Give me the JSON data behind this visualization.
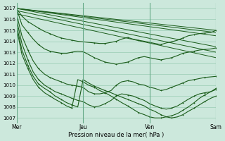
{
  "bg_color": "#cce8dc",
  "grid_color": "#99ccb3",
  "line_color": "#1a5c1a",
  "marker": "+",
  "xlabel": "Pression niveau de la mer( hPa )",
  "xtick_labels": [
    "Mer",
    "Jeu",
    "Ven",
    "Sam"
  ],
  "ylim": [
    1006.5,
    1017.5
  ],
  "yticks": [
    1007,
    1008,
    1009,
    1010,
    1011,
    1012,
    1013,
    1014,
    1015,
    1016,
    1017
  ],
  "xlim_days": [
    0,
    3
  ],
  "straight_lines": [
    {
      "x": [
        0,
        3
      ],
      "y": [
        1017.0,
        1015.0
      ]
    },
    {
      "x": [
        0,
        3
      ],
      "y": [
        1017.0,
        1014.8
      ]
    },
    {
      "x": [
        0,
        3
      ],
      "y": [
        1017.0,
        1014.5
      ]
    },
    {
      "x": [
        0,
        3
      ],
      "y": [
        1017.0,
        1013.5
      ]
    },
    {
      "x": [
        0,
        3
      ],
      "y": [
        1016.8,
        1013.0
      ]
    },
    {
      "x": [
        0,
        3
      ],
      "y": [
        1016.5,
        1012.5
      ]
    }
  ],
  "wavy_lines": [
    {
      "x": [
        0,
        0.08,
        0.17,
        0.25,
        0.33,
        0.42,
        0.5,
        0.58,
        0.67,
        0.75,
        0.83,
        0.92,
        1.0,
        1.08,
        1.17,
        1.25,
        1.33,
        1.42,
        1.5,
        1.58,
        1.67,
        1.75,
        1.83,
        1.92,
        2.0,
        2.08,
        2.17,
        2.25,
        2.33,
        2.42,
        2.5,
        2.58,
        2.67,
        2.75,
        2.83,
        2.92,
        3.0
      ],
      "y": [
        1017.0,
        1016.3,
        1015.8,
        1015.5,
        1015.2,
        1014.9,
        1014.7,
        1014.5,
        1014.3,
        1014.2,
        1014.1,
        1014.0,
        1013.95,
        1013.9,
        1013.85,
        1013.8,
        1013.8,
        1013.9,
        1014.0,
        1014.2,
        1014.35,
        1014.2,
        1014.1,
        1014.0,
        1013.9,
        1013.8,
        1013.7,
        1013.85,
        1013.95,
        1014.1,
        1014.3,
        1014.5,
        1014.6,
        1014.7,
        1014.75,
        1014.8,
        1015.0
      ]
    },
    {
      "x": [
        0,
        0.08,
        0.17,
        0.25,
        0.33,
        0.42,
        0.5,
        0.58,
        0.67,
        0.75,
        0.83,
        0.92,
        1.0,
        1.08,
        1.17,
        1.25,
        1.33,
        1.42,
        1.5,
        1.58,
        1.67,
        1.75,
        1.83,
        1.92,
        2.0,
        2.08,
        2.17,
        2.25,
        2.33,
        2.42,
        2.5,
        2.58,
        2.67,
        2.75,
        2.83,
        2.92,
        3.0
      ],
      "y": [
        1017.0,
        1015.5,
        1014.8,
        1014.2,
        1013.7,
        1013.3,
        1013.1,
        1013.0,
        1012.9,
        1012.9,
        1013.0,
        1013.1,
        1013.05,
        1012.8,
        1012.5,
        1012.3,
        1012.1,
        1012.0,
        1011.9,
        1012.0,
        1012.1,
        1012.3,
        1012.5,
        1012.6,
        1012.5,
        1012.4,
        1012.3,
        1012.4,
        1012.5,
        1012.7,
        1012.9,
        1013.0,
        1013.1,
        1013.2,
        1013.25,
        1013.3,
        1013.4
      ]
    },
    {
      "x": [
        0,
        0.08,
        0.17,
        0.25,
        0.33,
        0.42,
        0.5,
        0.58,
        0.67,
        0.75,
        0.83,
        0.92,
        1.0,
        1.08,
        1.17,
        1.25,
        1.33,
        1.42,
        1.5,
        1.58,
        1.67,
        1.75,
        1.83,
        1.92,
        2.0,
        2.08,
        2.17,
        2.25,
        2.33,
        2.42,
        2.5,
        2.58,
        2.67,
        2.75,
        2.83,
        2.92,
        3.0
      ],
      "y": [
        1016.5,
        1014.5,
        1013.2,
        1012.2,
        1011.5,
        1011.0,
        1010.7,
        1010.5,
        1010.3,
        1010.1,
        1010.0,
        1009.9,
        1009.8,
        1009.4,
        1009.2,
        1009.2,
        1009.3,
        1009.5,
        1010.0,
        1010.3,
        1010.4,
        1010.3,
        1010.1,
        1010.0,
        1009.8,
        1009.7,
        1009.5,
        1009.6,
        1009.8,
        1010.0,
        1010.2,
        1010.4,
        1010.5,
        1010.6,
        1010.7,
        1010.75,
        1010.8
      ]
    },
    {
      "x": [
        0,
        0.08,
        0.17,
        0.25,
        0.33,
        0.42,
        0.5,
        0.58,
        0.67,
        0.75,
        0.83,
        0.92,
        1.0,
        1.08,
        1.17,
        1.25,
        1.33,
        1.42,
        1.5,
        1.58,
        1.67,
        1.75,
        1.83,
        1.92,
        2.0,
        2.08,
        2.17,
        2.25,
        2.33,
        2.42,
        2.5,
        2.58,
        2.67,
        2.75,
        2.83,
        2.92,
        3.0
      ],
      "y": [
        1016.0,
        1013.8,
        1012.3,
        1011.2,
        1010.5,
        1010.0,
        1009.7,
        1009.4,
        1009.2,
        1009.0,
        1008.8,
        1008.6,
        1008.5,
        1008.2,
        1008.0,
        1008.1,
        1008.3,
        1008.6,
        1009.0,
        1009.2,
        1009.1,
        1009.0,
        1008.8,
        1008.6,
        1008.3,
        1008.1,
        1007.9,
        1007.8,
        1007.9,
        1008.1,
        1008.4,
        1008.7,
        1009.0,
        1009.2,
        1009.3,
        1009.4,
        1009.6
      ]
    },
    {
      "x": [
        0,
        0.08,
        0.17,
        0.25,
        0.33,
        0.42,
        0.5,
        0.58,
        0.67,
        0.75,
        0.83,
        0.92,
        1.0,
        1.08,
        1.17,
        1.25,
        1.33,
        1.42,
        1.5,
        1.58,
        1.67,
        1.75,
        1.83,
        1.92,
        2.0,
        2.08,
        2.17,
        2.25,
        2.33,
        2.42,
        2.5,
        2.58,
        2.67,
        2.75,
        2.83,
        2.92,
        3.0
      ],
      "y": [
        1015.5,
        1013.2,
        1011.8,
        1010.8,
        1010.1,
        1009.7,
        1009.4,
        1009.0,
        1008.7,
        1008.4,
        1008.2,
        1008.0,
        1010.5,
        1010.2,
        1009.9,
        1009.7,
        1009.5,
        1009.3,
        1009.1,
        1008.9,
        1008.7,
        1008.5,
        1008.3,
        1008.1,
        1007.8,
        1007.6,
        1007.3,
        1007.1,
        1007.0,
        1007.1,
        1007.3,
        1007.6,
        1007.9,
        1008.2,
        1008.5,
        1008.8,
        1009.0
      ]
    },
    {
      "x": [
        0,
        0.08,
        0.17,
        0.25,
        0.33,
        0.42,
        0.5,
        0.58,
        0.67,
        0.75,
        0.83,
        0.92,
        1.0,
        1.08,
        1.17,
        1.25,
        1.33,
        1.42,
        1.5,
        1.58,
        1.67,
        1.75,
        1.83,
        1.92,
        2.0,
        2.08,
        2.17,
        2.25,
        2.33,
        2.42,
        2.5,
        2.58,
        2.67,
        2.75,
        2.83,
        2.92,
        3.0
      ],
      "y": [
        1015.2,
        1012.8,
        1011.5,
        1010.5,
        1009.8,
        1009.3,
        1009.0,
        1008.7,
        1008.4,
        1008.1,
        1007.9,
        1010.5,
        1010.3,
        1010.0,
        1009.8,
        1009.5,
        1009.3,
        1009.0,
        1008.7,
        1008.4,
        1008.1,
        1007.8,
        1007.5,
        1007.3,
        1007.1,
        1007.0,
        1007.0,
        1007.1,
        1007.2,
        1007.4,
        1007.7,
        1008.0,
        1008.4,
        1008.8,
        1009.1,
        1009.4,
        1009.7
      ]
    }
  ]
}
